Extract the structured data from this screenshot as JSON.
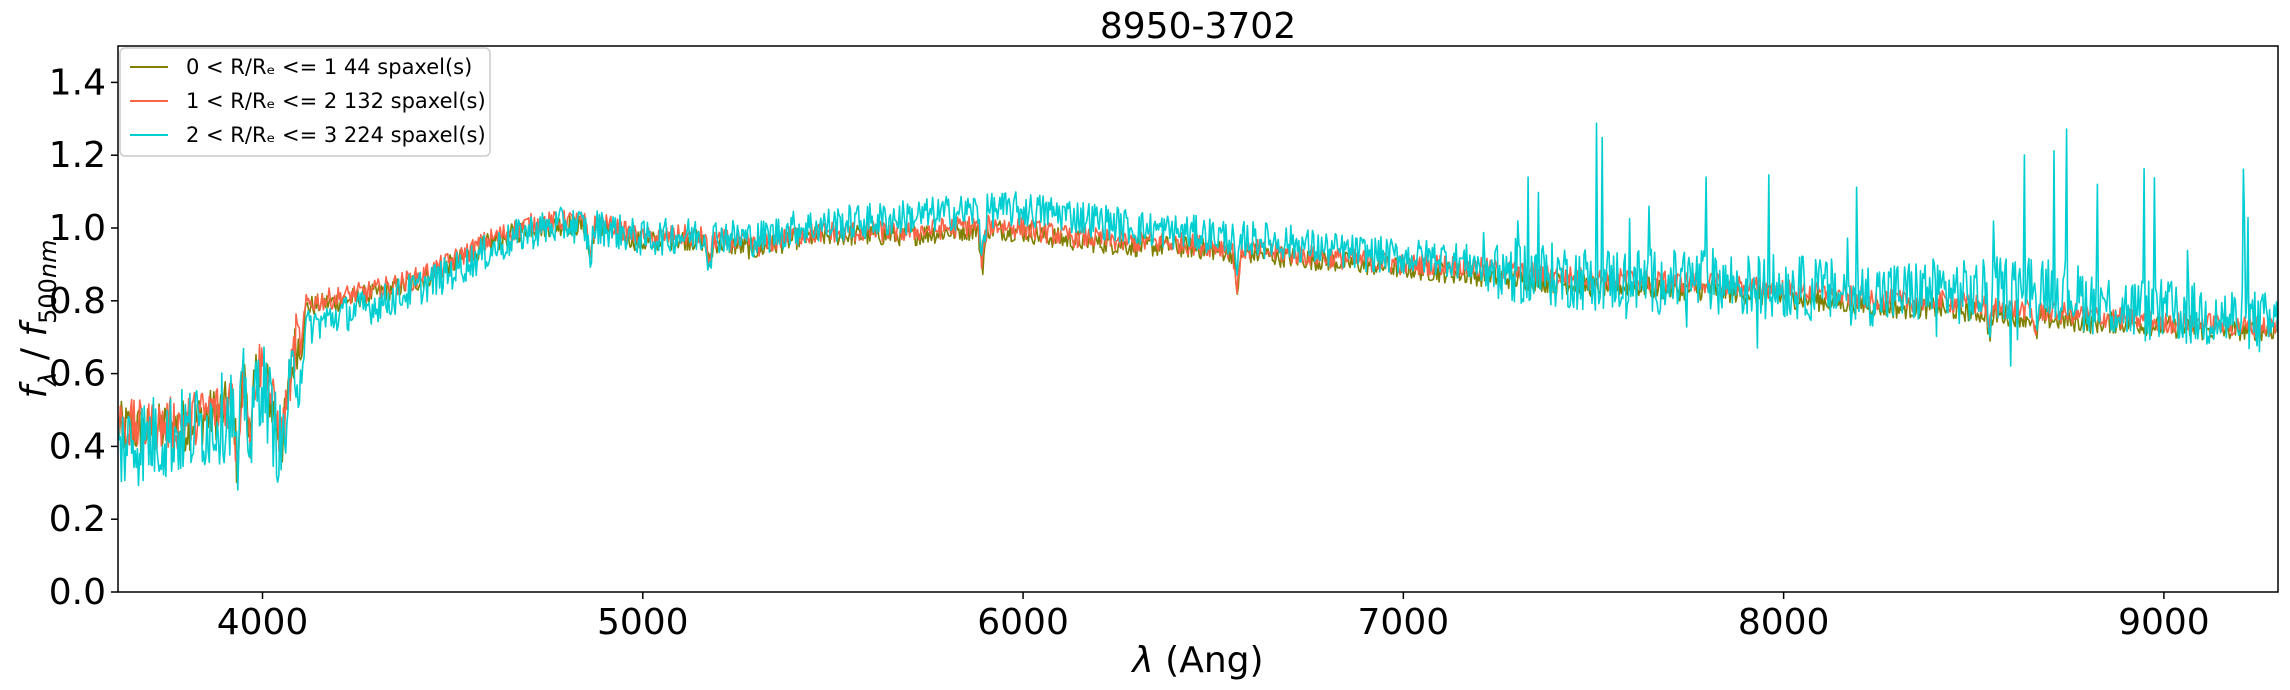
{
  "chart_data": {
    "type": "line",
    "title": "8950-3702",
    "xlabel": "λ (Ang)",
    "ylabel": "f_λ / f_500nm",
    "xlim": [
      3620,
      9300
    ],
    "ylim": [
      0.0,
      1.5
    ],
    "xticks": [
      4000,
      5000,
      6000,
      7000,
      8000,
      9000
    ],
    "yticks": [
      0.0,
      0.2,
      0.4,
      0.6,
      0.8,
      1.0,
      1.2,
      1.4
    ],
    "ytick_labels": [
      "0.0",
      "0.2",
      "0.4",
      "0.6",
      "0.8",
      "1.0",
      "1.2",
      "1.4"
    ],
    "grid": false,
    "legend_position": "top-left",
    "legend": [
      {
        "text": "0 < R/Rₑ <= 1 44 spaxel(s)"
      },
      {
        "text": "1 < R/Rₑ <= 2 132 spaxel(s)"
      },
      {
        "text": "2 < R/Rₑ <= 3 224 spaxel(s)"
      }
    ],
    "series": [
      {
        "name": "0 < R/Rₑ <= 1 44 spaxel(s)",
        "color": "#808000",
        "x": [
          3620,
          3700,
          3800,
          3900,
          3950,
          4000,
          4050,
          4100,
          4200,
          4300,
          4400,
          4500,
          4600,
          4700,
          4800,
          4900,
          5000,
          5100,
          5200,
          5300,
          5400,
          5500,
          5600,
          5700,
          5800,
          5900,
          6000,
          6100,
          6200,
          6300,
          6400,
          6500,
          6600,
          6700,
          6800,
          6900,
          7000,
          7100,
          7200,
          7300,
          7400,
          7500,
          7600,
          7700,
          7800,
          7900,
          8000,
          8100,
          8200,
          8300,
          8400,
          8500,
          8600,
          8700,
          8800,
          8900,
          9000,
          9100,
          9200,
          9300
        ],
        "values": [
          0.45,
          0.44,
          0.46,
          0.5,
          0.58,
          0.62,
          0.4,
          0.78,
          0.8,
          0.82,
          0.85,
          0.9,
          0.96,
          1.0,
          1.01,
          1.0,
          0.96,
          0.97,
          0.96,
          0.94,
          0.97,
          0.98,
          0.98,
          0.98,
          0.99,
          1.0,
          0.99,
          0.97,
          0.96,
          0.95,
          0.95,
          0.94,
          0.93,
          0.92,
          0.91,
          0.9,
          0.89,
          0.88,
          0.87,
          0.86,
          0.85,
          0.84,
          0.84,
          0.83,
          0.83,
          0.82,
          0.81,
          0.8,
          0.79,
          0.78,
          0.78,
          0.77,
          0.76,
          0.75,
          0.74,
          0.74,
          0.73,
          0.72,
          0.72,
          0.72
        ]
      },
      {
        "name": "1 < R/Rₑ <= 2 132 spaxel(s)",
        "color": "#FF6347",
        "x": [
          3620,
          3700,
          3800,
          3900,
          3950,
          4000,
          4050,
          4100,
          4200,
          4300,
          4400,
          4500,
          4600,
          4700,
          4800,
          4900,
          5000,
          5100,
          5200,
          5300,
          5400,
          5500,
          5600,
          5700,
          5800,
          5900,
          6000,
          6100,
          6200,
          6300,
          6400,
          6500,
          6600,
          6700,
          6800,
          6900,
          7000,
          7100,
          7200,
          7300,
          7400,
          7500,
          7600,
          7700,
          7800,
          7900,
          8000,
          8100,
          8200,
          8300,
          8400,
          8500,
          8600,
          8700,
          8800,
          8900,
          9000,
          9100,
          9200,
          9300
        ],
        "values": [
          0.46,
          0.45,
          0.47,
          0.51,
          0.59,
          0.63,
          0.42,
          0.79,
          0.81,
          0.83,
          0.86,
          0.91,
          0.97,
          1.01,
          1.02,
          1.01,
          0.97,
          0.98,
          0.97,
          0.95,
          0.98,
          0.99,
          0.99,
          0.99,
          1.0,
          1.01,
          1.0,
          0.98,
          0.97,
          0.96,
          0.96,
          0.95,
          0.94,
          0.93,
          0.92,
          0.91,
          0.9,
          0.9,
          0.89,
          0.88,
          0.87,
          0.86,
          0.86,
          0.85,
          0.85,
          0.84,
          0.83,
          0.82,
          0.81,
          0.8,
          0.8,
          0.79,
          0.78,
          0.77,
          0.76,
          0.75,
          0.74,
          0.74,
          0.73,
          0.73
        ]
      },
      {
        "name": "2 < R/Rₑ <= 3 224 spaxel(s)",
        "color": "#00CED1",
        "x": [
          3620,
          3700,
          3800,
          3900,
          3950,
          4000,
          4050,
          4100,
          4200,
          4300,
          4400,
          4500,
          4600,
          4700,
          4800,
          4900,
          5000,
          5100,
          5200,
          5300,
          5400,
          5500,
          5600,
          5700,
          5800,
          5900,
          6000,
          6100,
          6200,
          6300,
          6400,
          6500,
          6600,
          6700,
          6800,
          6900,
          7000,
          7100,
          7200,
          7300,
          7400,
          7500,
          7600,
          7700,
          7800,
          7900,
          8000,
          8100,
          8200,
          8300,
          8400,
          8500,
          8600,
          8700,
          8800,
          8900,
          9000,
          9100,
          9200,
          9300
        ],
        "values": [
          0.4,
          0.42,
          0.44,
          0.48,
          0.55,
          0.58,
          0.38,
          0.72,
          0.76,
          0.79,
          0.83,
          0.88,
          0.94,
          0.99,
          1.01,
          1.0,
          0.97,
          0.98,
          0.98,
          0.97,
          1.0,
          1.01,
          1.02,
          1.03,
          1.04,
          1.05,
          1.05,
          1.04,
          1.02,
          1.0,
          0.99,
          0.98,
          0.97,
          0.96,
          0.94,
          0.93,
          0.92,
          0.92,
          0.9,
          0.88,
          0.87,
          0.86,
          0.86,
          0.85,
          0.86,
          0.84,
          0.84,
          0.83,
          0.82,
          0.82,
          0.83,
          0.82,
          0.84,
          0.85,
          0.8,
          0.78,
          0.77,
          0.76,
          0.75,
          0.73
        ]
      }
    ]
  }
}
